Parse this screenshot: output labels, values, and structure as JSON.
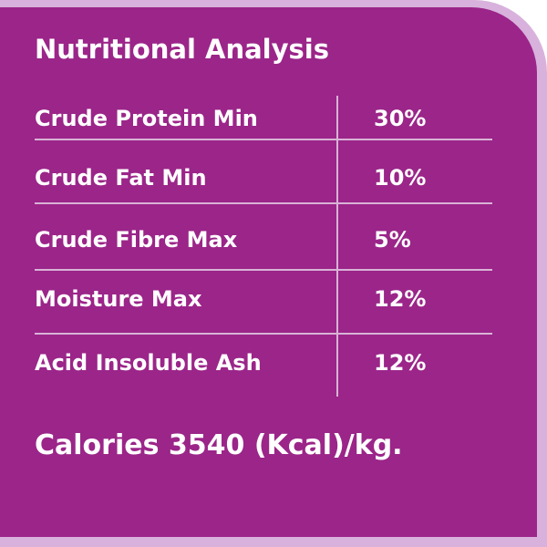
{
  "header": {
    "title": "Nutritional Analysis"
  },
  "table": {
    "rows": [
      [
        "Crude Protein Min",
        "30%"
      ],
      [
        "Crude Fat Min",
        "10%"
      ],
      [
        "Crude Fibre Max",
        "5%"
      ],
      [
        "Moisture Max",
        "12%"
      ],
      [
        "Acid Insoluble Ash",
        "12%"
      ]
    ]
  },
  "footer": {
    "text": "Calories 3540 (Kcal)/kg."
  }
}
